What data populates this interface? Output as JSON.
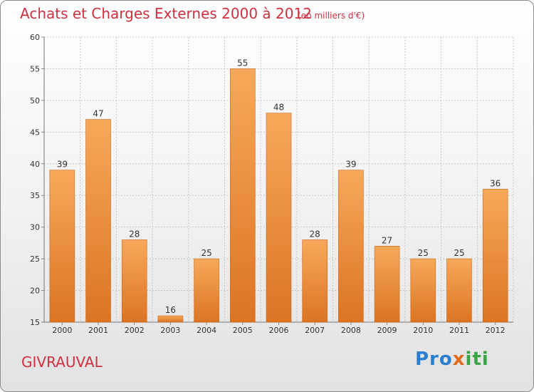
{
  "chart_data": {
    "type": "bar",
    "title": "Achats et Charges Externes 2000 à 2012",
    "subtitle": "(en milliers d'€)",
    "categories": [
      "2000",
      "2001",
      "2002",
      "2003",
      "2004",
      "2005",
      "2006",
      "2007",
      "2008",
      "2009",
      "2010",
      "2011",
      "2012"
    ],
    "values": [
      39,
      47,
      28,
      16,
      25,
      55,
      48,
      28,
      39,
      27,
      25,
      25,
      36
    ],
    "ylim": [
      15,
      60
    ],
    "yticks": [
      15,
      20,
      25,
      30,
      35,
      40,
      45,
      50,
      55,
      60
    ],
    "xlabel": "",
    "ylabel": "",
    "grid": true,
    "colors": {
      "bar_top": "#f7a95a",
      "bar_bottom": "#dc7422",
      "bar_edge": "#c8691e",
      "grid": "#c9c9c9",
      "text": "#333333"
    }
  },
  "location": "GIVRAUVAL",
  "brand": {
    "part1": "Pro",
    "part2": "x",
    "part3": "iti"
  }
}
